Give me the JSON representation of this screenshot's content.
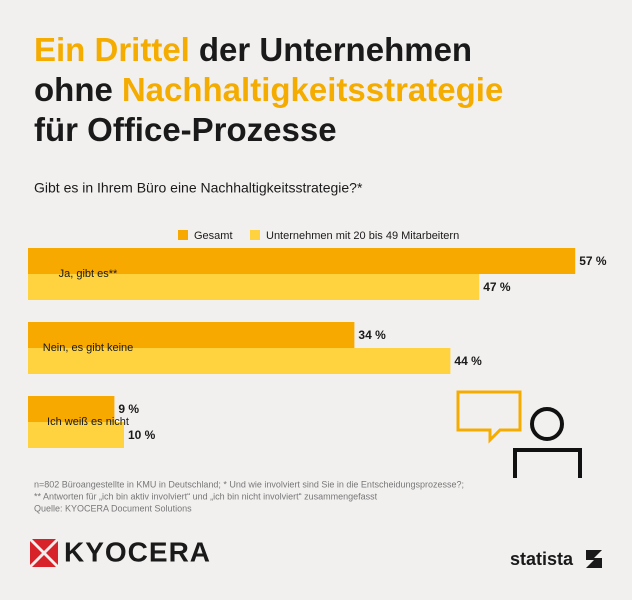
{
  "chart_data": {
    "type": "bar",
    "orientation": "horizontal",
    "title_lines": [
      [
        {
          "text": "Ein Drittel",
          "accent": true
        },
        {
          "text": "der Unternehmen",
          "accent": false
        }
      ],
      [
        {
          "text": "ohne",
          "accent": false
        },
        {
          "text": "Nachhaltigkeitsstrategie",
          "accent": true
        }
      ],
      [
        {
          "text": "für Office-Prozesse",
          "accent": false
        }
      ]
    ],
    "accent_color": "#f5ac00",
    "subtitle": "Gibt es in Ihrem Büro eine Nachhaltigkeitsstrategie?*",
    "categories": [
      "Ja, gibt es**",
      "Nein, es gibt keine",
      "Ich weiß es nicht"
    ],
    "series": [
      {
        "name": "Gesamt",
        "color": "#f7a900",
        "values": [
          57,
          34,
          9
        ],
        "value_labels": [
          "57 %",
          "34 %",
          "9 %"
        ]
      },
      {
        "name": "Unternehmen mit 20 bis 49 Mitarbeitern",
        "color": "#ffd23f",
        "values": [
          47,
          44,
          10
        ],
        "value_labels": [
          "47 %",
          "44 %",
          "10 %"
        ]
      }
    ],
    "notes": [
      "n=802 Büroangestellte in KMU in Deutschland; * Und wie involviert sind Sie in die Entscheidungsprozesse?;",
      "** Antworten für „ich bin aktiv involviert“ und „ich bin nicht involviert“ zusammengefasst",
      "Quelle: KYOCERA Document Solutions"
    ],
    "brand": "KYOCERA",
    "publisher": "statista"
  }
}
